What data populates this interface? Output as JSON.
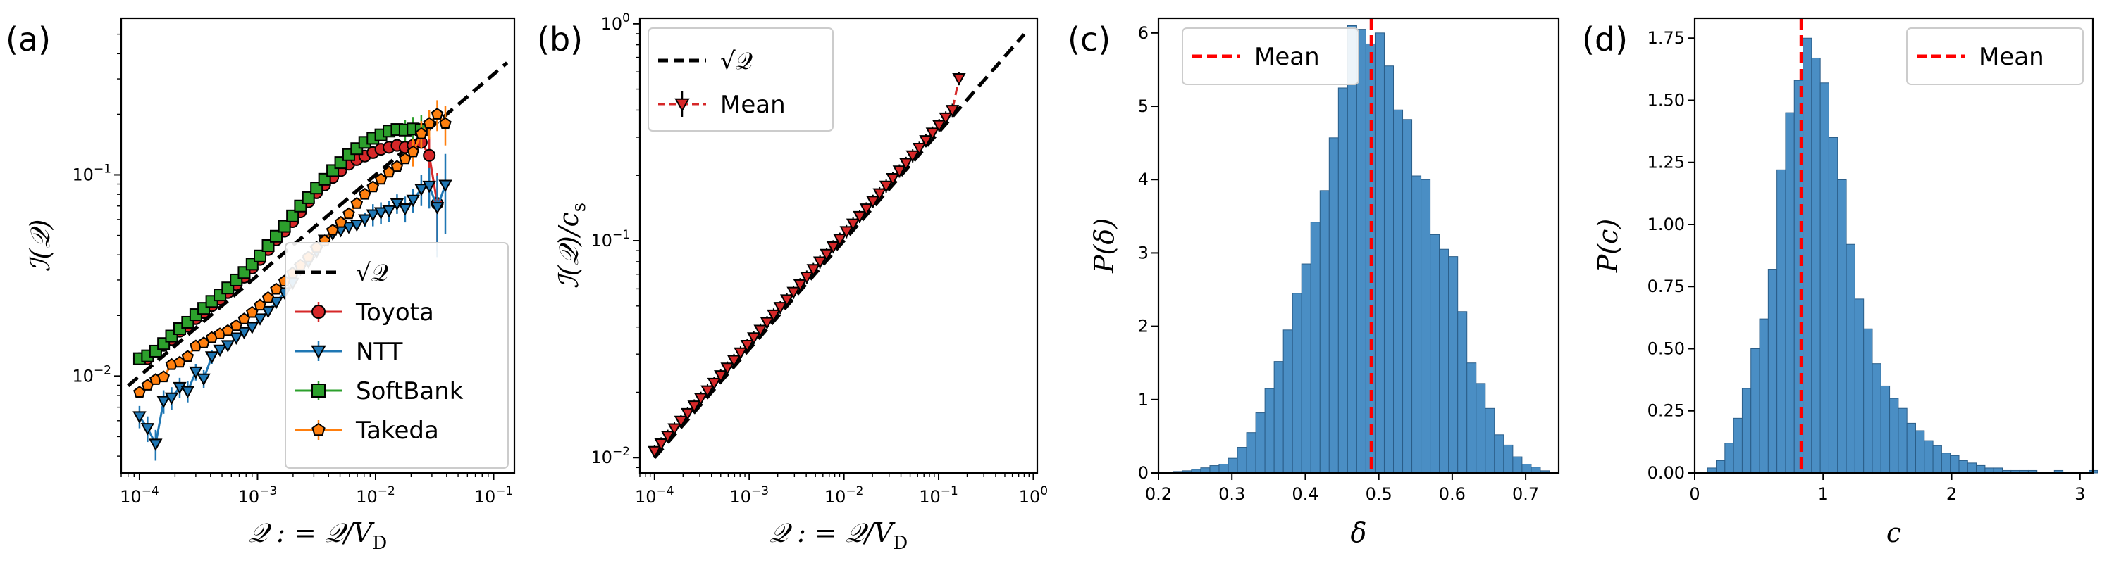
{
  "colors": {
    "toyota": "#d62728",
    "ntt": "#1f77b4",
    "softbank": "#2ca02c",
    "takeda": "#ff7f0e",
    "hist": "#4a8ec4",
    "mean": "#ff0000",
    "ref": "#000000"
  },
  "chart_data": [
    {
      "panel": "(a)",
      "type": "line",
      "xscale": "log",
      "yscale": "log",
      "xlim": [
        7e-05,
        0.15
      ],
      "ylim": [
        0.0033,
        0.6
      ],
      "xlabel": "𝒬 : = 𝒬/V",
      "xlabel_sub": "D",
      "ylabel": "ℐ(𝒬)",
      "xticks": [
        {
          "v": 0.0001,
          "base": "10",
          "exp": "−4"
        },
        {
          "v": 0.001,
          "base": "10",
          "exp": "−3"
        },
        {
          "v": 0.01,
          "base": "10",
          "exp": "−2"
        },
        {
          "v": 0.1,
          "base": "10",
          "exp": "−1"
        }
      ],
      "yticks": [
        {
          "v": 0.01,
          "base": "10",
          "exp": "−2"
        },
        {
          "v": 0.1,
          "base": "10",
          "exp": "−1"
        }
      ],
      "legend": {
        "position": "lower-right",
        "entries": [
          "√𝒬",
          "Toyota",
          "NTT",
          "SoftBank",
          "Takeda"
        ]
      },
      "reference": {
        "name": "√𝒬",
        "x": [
          8e-05,
          0.13
        ]
      },
      "series": [
        {
          "name": "Toyota",
          "marker": "circle",
          "color_key": "toyota",
          "x": [
            0.0001,
            0.000117,
            0.000137,
            0.00016,
            0.000187,
            0.000219,
            0.000256,
            0.0003,
            0.00035,
            0.00041,
            0.00048,
            0.00056,
            0.00066,
            0.00077,
            0.0009,
            0.00105,
            0.00123,
            0.00144,
            0.00169,
            0.00198,
            0.00231,
            0.0027,
            0.00316,
            0.0037,
            0.00433,
            0.00507,
            0.00593,
            0.00693,
            0.00811,
            0.0095,
            0.0111,
            0.013,
            0.0152,
            0.0178,
            0.0208,
            0.0244,
            0.0285,
            0.0333
          ],
          "y": [
            0.0122,
            0.0122,
            0.0132,
            0.0142,
            0.0152,
            0.0167,
            0.0177,
            0.0193,
            0.0207,
            0.0224,
            0.0241,
            0.026,
            0.0285,
            0.031,
            0.0344,
            0.038,
            0.0425,
            0.0475,
            0.0525,
            0.0585,
            0.0655,
            0.0735,
            0.0815,
            0.089,
            0.097,
            0.105,
            0.113,
            0.119,
            0.124,
            0.129,
            0.134,
            0.137,
            0.14,
            0.137,
            0.14,
            0.145,
            0.125,
            0.072
          ],
          "err": [
            0,
            0,
            0,
            0,
            0,
            0,
            0,
            0,
            0,
            0,
            0,
            0,
            0,
            0,
            0,
            0,
            0,
            0,
            0,
            0,
            0,
            0,
            0,
            0,
            0,
            0,
            0,
            0,
            0,
            0,
            0,
            0,
            0,
            0,
            0,
            0,
            0.03,
            0.03
          ]
        },
        {
          "name": "NTT",
          "marker": "triangle-down",
          "color_key": "ntt",
          "x": [
            0.0001,
            0.000117,
            0.000137,
            0.00016,
            0.000187,
            0.000219,
            0.000256,
            0.0003,
            0.00035,
            0.00041,
            0.00048,
            0.00056,
            0.00066,
            0.00077,
            0.0009,
            0.00105,
            0.00123,
            0.00144,
            0.00169,
            0.00198,
            0.00231,
            0.0027,
            0.00316,
            0.0037,
            0.00433,
            0.00507,
            0.00593,
            0.00693,
            0.00811,
            0.0095,
            0.0111,
            0.013,
            0.0152,
            0.0178,
            0.0208,
            0.0244,
            0.0285,
            0.0333,
            0.039
          ],
          "y": [
            0.0063,
            0.0055,
            0.0046,
            0.0075,
            0.0078,
            0.0088,
            0.0084,
            0.0105,
            0.0097,
            0.0125,
            0.0135,
            0.0142,
            0.0155,
            0.0165,
            0.0175,
            0.0193,
            0.021,
            0.0233,
            0.026,
            0.029,
            0.034,
            0.037,
            0.0415,
            0.0475,
            0.051,
            0.053,
            0.055,
            0.0565,
            0.06,
            0.0635,
            0.065,
            0.0665,
            0.072,
            0.068,
            0.075,
            0.085,
            0.088,
            0.069,
            0.089
          ],
          "err": [
            0.0008,
            0.0008,
            0.0008,
            0.001,
            0.001,
            0.001,
            0.001,
            0.001,
            0.001,
            0.001,
            0,
            0,
            0,
            0,
            0,
            0,
            0,
            0,
            0,
            0,
            0,
            0,
            0,
            0,
            0,
            0,
            0,
            0,
            0.005,
            0.008,
            0.008,
            0.008,
            0.008,
            0.01,
            0.01,
            0.015,
            0.02,
            0.03,
            0.038
          ]
        },
        {
          "name": "SoftBank",
          "marker": "square",
          "color_key": "softbank",
          "x": [
            0.0001,
            0.000117,
            0.000137,
            0.00016,
            0.000187,
            0.000219,
            0.000256,
            0.0003,
            0.00035,
            0.00041,
            0.00048,
            0.00056,
            0.00066,
            0.00077,
            0.0009,
            0.00105,
            0.00123,
            0.00144,
            0.00169,
            0.00198,
            0.00231,
            0.0027,
            0.00316,
            0.0037,
            0.00433,
            0.00507,
            0.00593,
            0.00693,
            0.00811,
            0.0095,
            0.0111,
            0.013,
            0.0152,
            0.0178,
            0.0208,
            0.0244
          ],
          "y": [
            0.0122,
            0.0126,
            0.0133,
            0.0145,
            0.0158,
            0.0172,
            0.0185,
            0.0202,
            0.0217,
            0.0235,
            0.0253,
            0.0274,
            0.03,
            0.0327,
            0.036,
            0.0395,
            0.0445,
            0.0495,
            0.0555,
            0.0625,
            0.07,
            0.077,
            0.086,
            0.095,
            0.105,
            0.115,
            0.126,
            0.135,
            0.145,
            0.152,
            0.158,
            0.165,
            0.168,
            0.167,
            0.169,
            0.168
          ],
          "err": [
            0,
            0,
            0,
            0,
            0,
            0,
            0,
            0,
            0,
            0,
            0,
            0,
            0,
            0,
            0,
            0,
            0,
            0,
            0,
            0,
            0,
            0,
            0,
            0,
            0,
            0,
            0,
            0,
            0,
            0,
            0,
            0,
            0,
            0.02,
            0.025,
            0.03
          ]
        },
        {
          "name": "Takeda",
          "marker": "pentagon",
          "color_key": "takeda",
          "x": [
            0.0001,
            0.000117,
            0.000137,
            0.00016,
            0.000187,
            0.000219,
            0.000256,
            0.0003,
            0.00035,
            0.00041,
            0.00048,
            0.00056,
            0.00066,
            0.00077,
            0.0009,
            0.00105,
            0.00123,
            0.00144,
            0.00169,
            0.00198,
            0.00231,
            0.0027,
            0.00316,
            0.0037,
            0.00433,
            0.00507,
            0.00593,
            0.00693,
            0.00811,
            0.0095,
            0.0111,
            0.013,
            0.0152,
            0.0178,
            0.0208,
            0.0244,
            0.0285,
            0.0333,
            0.039
          ],
          "y": [
            0.0083,
            0.009,
            0.0096,
            0.0099,
            0.0114,
            0.0117,
            0.0125,
            0.0141,
            0.0146,
            0.0155,
            0.0162,
            0.0168,
            0.0178,
            0.0192,
            0.0207,
            0.0225,
            0.0245,
            0.027,
            0.0296,
            0.0325,
            0.0355,
            0.039,
            0.0435,
            0.047,
            0.053,
            0.058,
            0.064,
            0.072,
            0.08,
            0.087,
            0.095,
            0.103,
            0.11,
            0.12,
            0.13,
            0.16,
            0.18,
            0.2,
            0.18
          ],
          "err": [
            0,
            0,
            0,
            0,
            0,
            0,
            0,
            0,
            0,
            0,
            0,
            0,
            0,
            0,
            0,
            0,
            0,
            0,
            0,
            0,
            0,
            0,
            0,
            0,
            0,
            0,
            0,
            0,
            0,
            0,
            0,
            0,
            0,
            0,
            0.02,
            0.025,
            0.03,
            0.035,
            0.04
          ]
        }
      ]
    },
    {
      "panel": "(b)",
      "type": "line",
      "xscale": "log",
      "yscale": "log",
      "xlim": [
        7e-05,
        1.1
      ],
      "ylim": [
        0.0085,
        1.06
      ],
      "xlabel": "𝒬 : = 𝒬/V",
      "xlabel_sub": "D",
      "ylabel": "ℐ(𝒬)/c",
      "ylabel_sub": "s",
      "xticks": [
        {
          "v": 0.0001,
          "base": "10",
          "exp": "−4"
        },
        {
          "v": 0.001,
          "base": "10",
          "exp": "−3"
        },
        {
          "v": 0.01,
          "base": "10",
          "exp": "−2"
        },
        {
          "v": 0.1,
          "base": "10",
          "exp": "−1"
        },
        {
          "v": 1,
          "base": "10",
          "exp": "0"
        }
      ],
      "yticks": [
        {
          "v": 0.01,
          "base": "10",
          "exp": "−2"
        },
        {
          "v": 0.1,
          "base": "10",
          "exp": "−1"
        },
        {
          "v": 1,
          "base": "10",
          "exp": "0"
        }
      ],
      "legend": {
        "position": "upper-left",
        "entries": [
          "√𝒬",
          "Mean"
        ]
      },
      "reference": {
        "name": "√𝒬",
        "x": [
          0.0001,
          0.8
        ]
      },
      "series": [
        {
          "name": "Mean",
          "marker": "triangle-down",
          "color_key": "toyota",
          "x_start": 0.0001,
          "x_ratio": 1.1746,
          "points": 47,
          "y_factor": 1.07,
          "last_y": 0.56
        }
      ]
    },
    {
      "panel": "(c)",
      "type": "histogram",
      "xlim": [
        0.2,
        0.745
      ],
      "ylim": [
        0,
        6.2
      ],
      "xlabel": "δ",
      "ylabel": "P(δ)",
      "xticks": [
        "0.2",
        "0.3",
        "0.4",
        "0.5",
        "0.6",
        "0.7"
      ],
      "xtick_values": [
        0.2,
        0.3,
        0.4,
        0.5,
        0.6,
        0.7
      ],
      "yticks": [
        "0",
        "1",
        "2",
        "3",
        "4",
        "5",
        "6"
      ],
      "ytick_values": [
        0,
        1,
        2,
        3,
        4,
        5,
        6
      ],
      "mean": 0.49,
      "legend": {
        "position": "upper-left",
        "entries": [
          "Mean"
        ]
      },
      "bin_start": 0.22,
      "bin_width": 0.0125,
      "values": [
        0.02,
        0.03,
        0.05,
        0.07,
        0.1,
        0.12,
        0.2,
        0.35,
        0.55,
        0.82,
        1.15,
        1.52,
        1.95,
        2.45,
        2.85,
        3.42,
        3.85,
        4.57,
        5.25,
        6.1,
        6.05,
        5.85,
        6.0,
        5.55,
        4.95,
        4.82,
        4.05,
        4.0,
        3.25,
        3.05,
        2.95,
        2.2,
        1.5,
        1.22,
        0.88,
        0.52,
        0.38,
        0.22,
        0.12,
        0.08,
        0.03
      ]
    },
    {
      "panel": "(d)",
      "type": "histogram",
      "xlim": [
        0,
        3.1
      ],
      "ylim": [
        0,
        1.83
      ],
      "xlabel": "c",
      "ylabel": "P(c)",
      "xticks": [
        "0",
        "1",
        "2",
        "3"
      ],
      "xtick_values": [
        0,
        1,
        2,
        3
      ],
      "yticks": [
        "0.00",
        "0.25",
        "0.50",
        "0.75",
        "1.00",
        "1.25",
        "1.50",
        "1.75"
      ],
      "ytick_values": [
        0,
        0.25,
        0.5,
        0.75,
        1.0,
        1.25,
        1.5,
        1.75
      ],
      "mean": 0.83,
      "legend": {
        "position": "upper-right",
        "entries": [
          "Mean"
        ]
      },
      "bin_start": 0.1,
      "bin_width": 0.0675,
      "values": [
        0.02,
        0.05,
        0.12,
        0.22,
        0.34,
        0.5,
        0.62,
        0.82,
        1.22,
        1.45,
        1.58,
        1.75,
        1.67,
        1.57,
        1.35,
        1.18,
        0.92,
        0.7,
        0.58,
        0.44,
        0.35,
        0.3,
        0.26,
        0.2,
        0.17,
        0.13,
        0.11,
        0.08,
        0.07,
        0.05,
        0.04,
        0.03,
        0.02,
        0.02,
        0.01,
        0.01,
        0.01,
        0.01,
        0.0,
        0.0,
        0.01,
        0.0,
        0.0,
        0.0,
        0.01
      ]
    }
  ]
}
